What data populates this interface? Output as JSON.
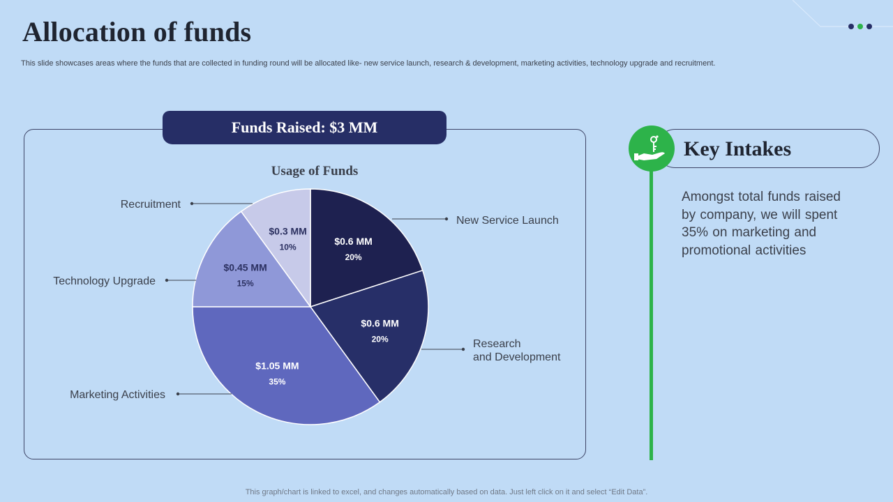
{
  "slide": {
    "title": "Allocation of funds",
    "subtitle": "This slide showcases areas where the funds that are collected in funding round will be allocated like- new service launch, research & development, marketing activities, technology upgrade and recruitment.",
    "footer": "This graph/chart is linked to excel,  and changes automatically based on data. Just left click on it and select “Edit Data”."
  },
  "banner": {
    "label": "Funds Raised: $3 MM"
  },
  "key_intakes": {
    "title": "Key Intakes",
    "text": "Amongst  total funds raised by company, we will spent 35% on marketing  and promotional  activities"
  },
  "colors": {
    "background": "#c0dbf6",
    "accent_green": "#2db34a",
    "banner": "#262e66",
    "dots": [
      "#262e66",
      "#2db34a",
      "#262e66"
    ]
  },
  "chart_data": {
    "type": "pie",
    "title": "Usage of Funds",
    "slices": [
      {
        "label": "New Service Launch",
        "value": 20,
        "amount": "$0.6 MM",
        "percent": "20%",
        "color": "#1e2150"
      },
      {
        "label": "Research\nand Development",
        "value": 20,
        "amount": "$0.6 MM",
        "percent": "20%",
        "color": "#272f68"
      },
      {
        "label": "Marketing Activities",
        "value": 35,
        "amount": "$1.05 MM",
        "percent": "35%",
        "color": "#5f68be"
      },
      {
        "label": "Technology  Upgrade",
        "value": 15,
        "amount": "$0.45 MM",
        "percent": "15%",
        "color": "#8f98d8"
      },
      {
        "label": "Recruitment",
        "value": 10,
        "amount": "$0.3 MM",
        "percent": "10%",
        "color": "#c7cae9"
      }
    ]
  }
}
